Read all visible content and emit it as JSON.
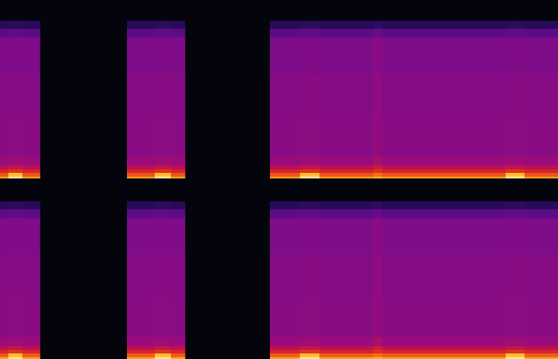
{
  "chart_data": {
    "type": "spectrogram",
    "tick_labels": false,
    "grid": false,
    "xlim": [
      0,
      800
    ],
    "ylim": [
      0,
      24
    ],
    "zlim": [
      -120,
      -20
    ],
    "freq_edges": [
      0,
      0.3,
      0.8,
      1.3,
      1.8,
      3,
      8,
      14,
      19,
      20.2,
      21.2
    ],
    "channels": [
      {
        "segments": [
          {
            "time_edges": [
              0,
              12,
              32,
              57
            ],
            "cells": [
              [
                -34,
                -44,
                -54,
                -60,
                -70,
                -75,
                -76,
                -78,
                -86,
                -98
              ],
              [
                -24,
                -30,
                -50,
                -58,
                -69,
                -74,
                -75,
                -77,
                -85,
                -97
              ],
              [
                -34,
                -44,
                -54,
                -60,
                -70,
                -75,
                -76,
                -78,
                -86,
                -98
              ]
            ]
          },
          {
            "time_edges": [
              182,
              222,
              245,
              265
            ],
            "cells": [
              [
                -34,
                -44,
                -54,
                -60,
                -70,
                -75,
                -76,
                -78,
                -86,
                -98
              ],
              [
                -24,
                -30,
                -50,
                -58,
                -69,
                -74,
                -75,
                -77,
                -85,
                -97
              ],
              [
                -34,
                -44,
                -54,
                -60,
                -70,
                -75,
                -76,
                -78,
                -86,
                -98
              ]
            ]
          },
          {
            "time_edges": [
              387,
              430,
              458,
              535,
              548,
              725,
              752,
              800
            ],
            "cells": [
              [
                -34,
                -44,
                -54,
                -60,
                -70,
                -75,
                -76,
                -78,
                -86,
                -98
              ],
              [
                -24,
                -30,
                -50,
                -58,
                -69,
                -74,
                -75,
                -77,
                -85,
                -97
              ],
              [
                -34,
                -44,
                -54,
                -60,
                -70,
                -75,
                -76,
                -78,
                -86,
                -98
              ],
              [
                -32,
                -40,
                -50,
                -56,
                -66,
                -72,
                -73,
                -75,
                -84,
                -96
              ],
              [
                -34,
                -44,
                -54,
                -60,
                -70,
                -75,
                -76,
                -78,
                -86,
                -98
              ],
              [
                -24,
                -30,
                -50,
                -58,
                -69,
                -74,
                -75,
                -77,
                -85,
                -97
              ],
              [
                -34,
                -44,
                -54,
                -60,
                -70,
                -75,
                -76,
                -78,
                -86,
                -98
              ]
            ]
          }
        ]
      },
      {
        "segments": [
          {
            "time_edges": [
              0,
              12,
              32,
              57
            ],
            "cells": [
              [
                -33,
                -43,
                -54,
                -60,
                -70,
                -75,
                -76,
                -78,
                -86,
                -98
              ],
              [
                -24,
                -30,
                -50,
                -58,
                -69,
                -74,
                -75,
                -77,
                -85,
                -97
              ],
              [
                -33,
                -43,
                -54,
                -60,
                -70,
                -75,
                -76,
                -78,
                -86,
                -98
              ]
            ]
          },
          {
            "time_edges": [
              182,
              222,
              245,
              265
            ],
            "cells": [
              [
                -33,
                -43,
                -54,
                -60,
                -70,
                -75,
                -76,
                -78,
                -86,
                -98
              ],
              [
                -24,
                -30,
                -50,
                -58,
                -69,
                -74,
                -75,
                -77,
                -85,
                -97
              ],
              [
                -33,
                -43,
                -54,
                -60,
                -70,
                -75,
                -76,
                -78,
                -86,
                -98
              ]
            ]
          },
          {
            "time_edges": [
              387,
              430,
              458,
              535,
              548,
              725,
              752,
              800
            ],
            "cells": [
              [
                -33,
                -43,
                -54,
                -60,
                -70,
                -75,
                -76,
                -78,
                -86,
                -98
              ],
              [
                -24,
                -30,
                -50,
                -58,
                -69,
                -74,
                -75,
                -77,
                -85,
                -97
              ],
              [
                -33,
                -43,
                -54,
                -60,
                -70,
                -75,
                -76,
                -78,
                -86,
                -98
              ],
              [
                -32,
                -40,
                -50,
                -56,
                -66,
                -72,
                -73,
                -75,
                -84,
                -96
              ],
              [
                -33,
                -43,
                -54,
                -60,
                -70,
                -75,
                -76,
                -78,
                -86,
                -98
              ],
              [
                -24,
                -30,
                -50,
                -58,
                -69,
                -74,
                -75,
                -77,
                -85,
                -97
              ],
              [
                -33,
                -43,
                -54,
                -60,
                -70,
                -75,
                -76,
                -78,
                -86,
                -98
              ]
            ]
          }
        ]
      }
    ]
  }
}
